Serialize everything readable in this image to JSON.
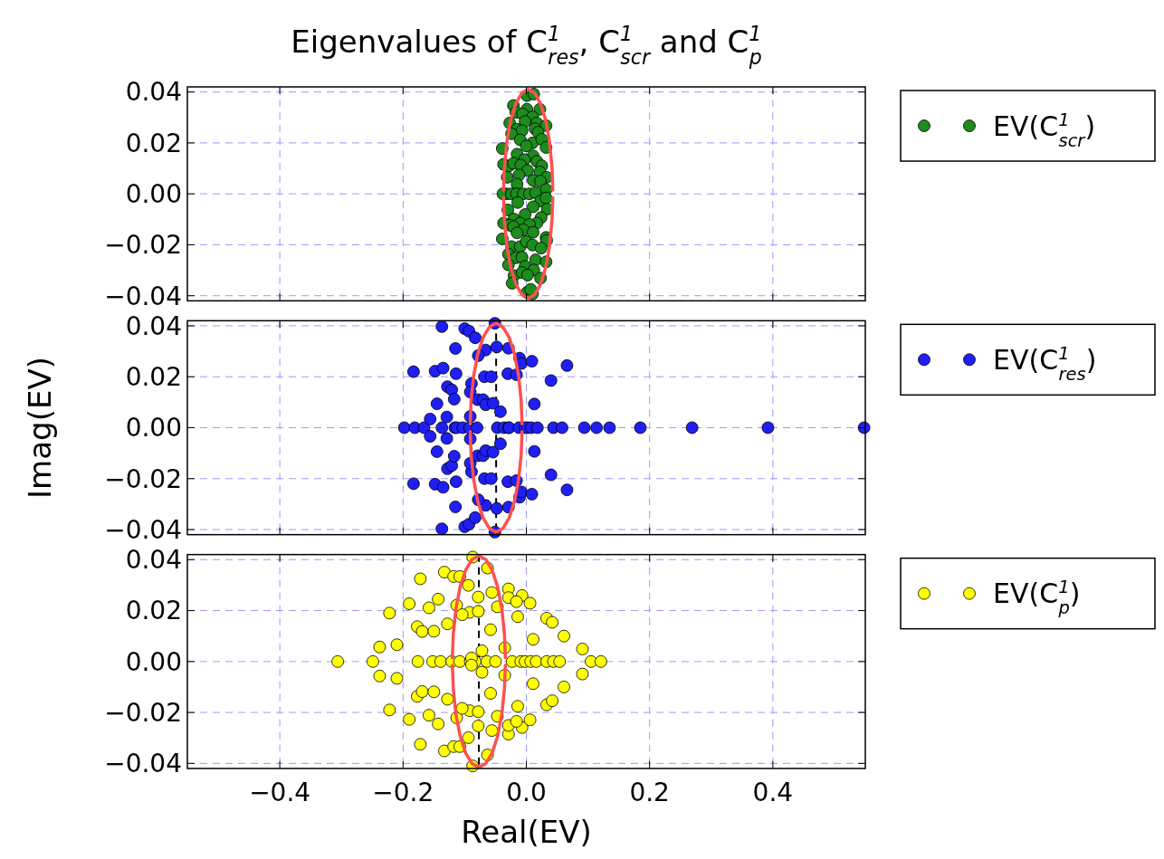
{
  "chart_data": [
    {
      "type": "scatter",
      "title": "Eigenvalues of C$^{1}$$_{res}$, C$^{1}$$_{scr}$ and C$^{1}$$_{p}$",
      "xlim": [
        -0.55,
        0.55
      ],
      "ylim": [
        -0.042,
        0.042
      ],
      "xticks": [
        -0.4,
        -0.2,
        0,
        0.2,
        0.4
      ],
      "yticks": [
        {
          "value": -0.04,
          "label": "−0.04"
        },
        {
          "value": -0.02,
          "label": "−0.02"
        },
        {
          "value": 0,
          "label": "0.00"
        },
        {
          "value": 0.02,
          "label": "0.02"
        },
        {
          "value": 0.04,
          "label": "0.04"
        }
      ],
      "tick_labels": "y",
      "grid": true,
      "legend": "right",
      "marker": "circle",
      "series": [
        {
          "name": "EV(C$^{1}$$_{scr}$)",
          "color": "#1c8c1c",
          "x": [
            0.001,
            0.012,
            -0.021,
            -0.017,
            0.001,
            0.022,
            -0.006,
            0.01,
            -0.027,
            -0.002,
            0.017,
            0.032,
            -0.015,
            -0.007,
            0.014,
            0.019,
            -0.024,
            -0.01,
            0.01,
            0.025,
            -0.039,
            0,
            0.032,
            -0.015,
            0.011,
            -0.003,
            0.017,
            -0.037,
            -0.028,
            -0.021,
            -0.009,
            0.002,
            0.025,
            0.022,
            -0.031,
            -0.012,
            0.011,
            0.033,
            0.023,
            0.032,
            -0.015,
            -0.032,
            -0.038,
            -0.024,
            -0.016,
            -0.005,
            0.005,
            0.015,
            -0.014,
            0.023,
            0.032,
            -0.03,
            0.011,
            0.034,
            -0.002,
            0.024,
            -0.037,
            -0.02,
            -0.01,
            0.017,
            -0.027,
            0.005,
            -0.021,
            -0.005,
            -0.015,
            0.011,
            -0.039,
            0.032,
            -0.024,
            -0.01,
            0,
            0.033,
            0.01,
            0.024,
            -0.029,
            -0.017,
            -0.007,
            0.015,
            0.032,
            -0.002,
            -0.029,
            0.012,
            -0.02,
            -0.007,
            0.002,
            0.023,
            -0.023,
            0.001,
            0.01,
            0.007
          ],
          "values": [
            0.0386,
            0.0392,
            0.0347,
            0.032,
            0.0332,
            0.0332,
            0.0314,
            0.0302,
            0.0278,
            0.0284,
            0.0278,
            0.0268,
            0.0254,
            0.0248,
            0.0256,
            0.0242,
            0.0236,
            0.0212,
            0.02,
            0.0214,
            0.0178,
            0.0188,
            0.0182,
            0.0156,
            0.0149,
            0.0134,
            0.0128,
            0.0116,
            0.011,
            0.012,
            0.0113,
            0.0092,
            0.011,
            0.0086,
            0.0065,
            0.0074,
            0.0053,
            0.0065,
            0.005,
            0.0017,
            0.0038,
            0,
            0,
            0,
            0,
            0,
            0,
            0.0005,
            -0.0034,
            -0.0028,
            -0.0016,
            -0.0063,
            -0.0051,
            -0.006,
            -0.0081,
            -0.0093,
            -0.0115,
            -0.0099,
            -0.0115,
            -0.0115,
            -0.0123,
            -0.012,
            -0.0129,
            -0.0141,
            -0.0153,
            -0.0151,
            -0.0177,
            -0.0171,
            -0.0207,
            -0.0207,
            -0.0187,
            -0.0183,
            -0.0201,
            -0.0213,
            -0.0237,
            -0.0251,
            -0.0249,
            -0.0259,
            -0.0267,
            -0.0285,
            -0.0279,
            -0.0299,
            -0.0321,
            -0.0309,
            -0.0319,
            -0.0331,
            -0.0351,
            -0.0387,
            -0.0393,
            -0.0375
          ]
        },
        {
          "type": "line",
          "marker": "none",
          "color": "#ff5050",
          "x": [
            -0.037,
            -0.0356,
            -0.0316,
            -0.0253,
            -0.017,
            -0.0074,
            0.003,
            0.0134,
            0.023,
            0.0313,
            0.0376,
            0.0416,
            0.043
          ],
          "values": [
            0.0015,
            0.0106,
            0.0205,
            0.029,
            0.0355,
            0.0396,
            0.041,
            0.0396,
            0.0355,
            0.029,
            0.0205,
            0.0106,
            0.0015
          ]
        },
        {
          "type": "line",
          "marker": "none",
          "color": "#ff5050",
          "x": [
            -0.037,
            -0.0356,
            -0.0316,
            -0.0253,
            -0.017,
            -0.0074,
            0.003,
            0.0134,
            0.023,
            0.0313,
            0.0376,
            0.0416,
            0.043
          ],
          "values": [
            -0.0015,
            -0.0106,
            -0.0205,
            -0.029,
            -0.0355,
            -0.0396,
            -0.041,
            -0.0396,
            -0.0355,
            -0.029,
            -0.0205,
            -0.0106,
            -0.0015
          ]
        }
      ]
    },
    {
      "type": "scatter",
      "ylabel": "Imag(EV)",
      "xlim": [
        -0.55,
        0.55
      ],
      "ylim": [
        -0.042,
        0.042
      ],
      "xticks": [
        -0.4,
        -0.2,
        0,
        0.2,
        0.4
      ],
      "yticks": [
        {
          "value": -0.04,
          "label": "−0.04"
        },
        {
          "value": -0.02,
          "label": "−0.02"
        },
        {
          "value": 0,
          "label": "0.00"
        },
        {
          "value": 0.02,
          "label": "0.02"
        },
        {
          "value": 0.04,
          "label": "0.04"
        }
      ],
      "tick_labels": "y",
      "grid": true,
      "legend": "right",
      "marker": "circle",
      "ref_lines": [
        {
          "axis": "x",
          "value": -0.049,
          "color": "#000000",
          "line_style": "dashed"
        }
      ],
      "series": [
        {
          "name": "EV(C$^{1}$$_{res}$)",
          "color": "#1f1ff5",
          "x": [
            -0.198,
            -0.181,
            -0.166,
            -0.137,
            -0.116,
            -0.113,
            -0.103,
            -0.092,
            -0.08,
            -0.047,
            -0.036,
            -0.029,
            -0.028,
            -0.012,
            -0.002,
            0.002,
            0.008,
            0.018,
            0.044,
            0.058,
            0.094,
            0.114,
            0.135,
            0.185,
            0.269,
            0.392,
            0.548,
            -0.137,
            -0.1,
            -0.093,
            -0.083,
            -0.051,
            -0.115,
            -0.066,
            -0.048,
            -0.029,
            -0.078,
            -0.011,
            -0.008,
            0.009,
            0.066,
            -0.183,
            -0.148,
            -0.135,
            -0.114,
            -0.068,
            -0.057,
            -0.03,
            -0.016,
            0.04,
            -0.089,
            -0.128,
            -0.121,
            -0.091,
            -0.117,
            -0.145,
            -0.079,
            -0.07,
            -0.066,
            -0.054,
            -0.042,
            0.013,
            -0.156,
            -0.129,
            -0.091,
            -0.137,
            -0.1,
            -0.093,
            -0.083,
            -0.051,
            -0.115,
            -0.066,
            -0.048,
            -0.029,
            -0.078,
            -0.011,
            -0.008,
            0.009,
            0.066,
            -0.183,
            -0.148,
            -0.135,
            -0.114,
            -0.068,
            -0.057,
            -0.03,
            -0.016,
            0.04,
            -0.089,
            -0.128,
            -0.121,
            -0.091,
            -0.117,
            -0.145,
            -0.079,
            -0.07,
            -0.066,
            -0.054,
            -0.042,
            0.013,
            -0.156,
            -0.129,
            -0.091
          ],
          "values": [
            0,
            0,
            0,
            0,
            0,
            0,
            0,
            0,
            0,
            0,
            0,
            0,
            0,
            0,
            0,
            0,
            0,
            0,
            0,
            0,
            0,
            0,
            0,
            0,
            0,
            0,
            0,
            0.0397,
            0.0389,
            0.0379,
            0.0353,
            0.041,
            0.0311,
            0.0305,
            0.0317,
            0.0312,
            0.0283,
            0.0273,
            0.0252,
            0.0261,
            0.0244,
            0.022,
            0.0222,
            0.0234,
            0.0212,
            0.02,
            0.02,
            0.0212,
            0.0208,
            0.0185,
            0.0173,
            0.0161,
            0.0149,
            0.014,
            0.0112,
            0.0094,
            0.011,
            0.011,
            0.009,
            0.0096,
            0.0063,
            0.0093,
            0.0034,
            0.0042,
            0.0044,
            -0.0397,
            -0.0389,
            -0.0379,
            -0.0353,
            -0.041,
            -0.0311,
            -0.0305,
            -0.0317,
            -0.0312,
            -0.0283,
            -0.0273,
            -0.0252,
            -0.0261,
            -0.0244,
            -0.022,
            -0.0222,
            -0.0234,
            -0.0212,
            -0.02,
            -0.02,
            -0.0212,
            -0.0208,
            -0.0185,
            -0.0173,
            -0.0161,
            -0.0149,
            -0.014,
            -0.0112,
            -0.0094,
            -0.011,
            -0.011,
            -0.009,
            -0.0096,
            -0.0063,
            -0.0093,
            -0.0034,
            -0.0042,
            -0.0044
          ]
        },
        {
          "type": "line",
          "marker": "none",
          "color": "#ff5050",
          "x": [
            -0.091,
            -0.0896,
            -0.0854,
            -0.0787,
            -0.07,
            -0.0599,
            -0.049,
            -0.0381,
            -0.028,
            -0.0193,
            -0.0126,
            -0.0084,
            -0.007
          ],
          "values": [
            0.0015,
            0.0106,
            0.0205,
            0.029,
            0.0355,
            0.0396,
            0.041,
            0.0396,
            0.0355,
            0.029,
            0.0205,
            0.0106,
            0.0015
          ]
        },
        {
          "type": "line",
          "marker": "none",
          "color": "#ff5050",
          "x": [
            -0.091,
            -0.0896,
            -0.0854,
            -0.0787,
            -0.07,
            -0.0599,
            -0.049,
            -0.0381,
            -0.028,
            -0.0193,
            -0.0126,
            -0.0084,
            -0.007
          ],
          "values": [
            -0.0015,
            -0.0106,
            -0.0205,
            -0.029,
            -0.0355,
            -0.0396,
            -0.041,
            -0.0396,
            -0.0355,
            -0.029,
            -0.0205,
            -0.0106,
            -0.0015
          ]
        }
      ]
    },
    {
      "type": "scatter",
      "xlabel": "Real(EV)",
      "xlim": [
        -0.55,
        0.55
      ],
      "ylim": [
        -0.042,
        0.042
      ],
      "xticks": [
        {
          "value": -0.4,
          "label": "−0.4"
        },
        {
          "value": -0.2,
          "label": "−0.2"
        },
        {
          "value": 0,
          "label": "0.0"
        },
        {
          "value": 0.2,
          "label": "0.2"
        },
        {
          "value": 0.4,
          "label": "0.4"
        }
      ],
      "yticks": [
        {
          "value": -0.04,
          "label": "−0.04"
        },
        {
          "value": -0.02,
          "label": "−0.02"
        },
        {
          "value": 0,
          "label": "0.00"
        },
        {
          "value": 0.02,
          "label": "0.02"
        },
        {
          "value": 0.04,
          "label": "0.04"
        }
      ],
      "grid": true,
      "legend": "right",
      "marker": "circle",
      "ref_lines": [
        {
          "axis": "x",
          "value": -0.077,
          "color": "#000000",
          "line_style": "dashed"
        }
      ],
      "series": [
        {
          "name": "EV(C$^{1}$$_{p}$)",
          "color": "#ffff00",
          "x": [
            -0.306,
            -0.249,
            -0.176,
            -0.152,
            -0.139,
            -0.121,
            -0.108,
            -0.091,
            -0.083,
            -0.064,
            -0.05,
            -0.023,
            -0.009,
            -0.002,
            0.007,
            0.016,
            0.033,
            0.044,
            0.054,
            0.105,
            0.121,
            -0.087,
            -0.063,
            -0.133,
            -0.118,
            -0.108,
            -0.172,
            -0.094,
            -0.029,
            -0.056,
            -0.078,
            -0.029,
            -0.007,
            -0.016,
            0.006,
            -0.143,
            -0.19,
            -0.158,
            -0.113,
            -0.047,
            -0.092,
            -0.104,
            -0.078,
            -0.222,
            -0.014,
            0.033,
            0.042,
            -0.128,
            -0.177,
            -0.169,
            -0.15,
            -0.058,
            0.061,
            0.011,
            -0.21,
            -0.238,
            -0.035,
            0.091,
            -0.072,
            -0.089,
            -0.087,
            -0.063,
            -0.133,
            -0.118,
            -0.108,
            -0.172,
            -0.094,
            -0.029,
            -0.056,
            -0.078,
            -0.029,
            -0.007,
            -0.016,
            0.006,
            -0.143,
            -0.19,
            -0.158,
            -0.113,
            -0.047,
            -0.092,
            -0.104,
            -0.078,
            -0.222,
            -0.014,
            0.033,
            0.042,
            -0.128,
            -0.177,
            -0.169,
            -0.15,
            -0.058,
            0.061,
            0.011,
            -0.21,
            -0.238,
            -0.035,
            0.091,
            -0.072,
            -0.089
          ],
          "values": [
            0,
            0,
            0,
            0,
            0,
            0,
            0,
            0,
            0,
            0,
            0,
            0,
            0,
            0,
            0,
            0,
            0,
            0,
            0,
            0,
            0,
            0.041,
            0.0367,
            0.0351,
            0.0334,
            0.0334,
            0.0325,
            0.0299,
            0.0285,
            0.0271,
            0.0253,
            0.0251,
            0.0259,
            0.0235,
            0.0229,
            0.0245,
            0.0227,
            0.0211,
            0.0221,
            0.0215,
            0.0193,
            0.0184,
            0.0197,
            0.019,
            0.0176,
            0.017,
            0.0154,
            0.0148,
            0.0137,
            0.0118,
            0.0119,
            0.0125,
            0.01,
            0.0087,
            0.0066,
            0.0057,
            0.0054,
            0.0049,
            0.0042,
            0.0014,
            -0.041,
            -0.0367,
            -0.0351,
            -0.0334,
            -0.0334,
            -0.0325,
            -0.0299,
            -0.0285,
            -0.0271,
            -0.0253,
            -0.0251,
            -0.0259,
            -0.0235,
            -0.0229,
            -0.0245,
            -0.0227,
            -0.0211,
            -0.0221,
            -0.0215,
            -0.0193,
            -0.0184,
            -0.0197,
            -0.019,
            -0.0176,
            -0.017,
            -0.0154,
            -0.0148,
            -0.0137,
            -0.0118,
            -0.0119,
            -0.0125,
            -0.01,
            -0.0087,
            -0.0066,
            -0.0057,
            -0.0054,
            -0.0049,
            -0.0042,
            -0.0014
          ]
        },
        {
          "type": "line",
          "marker": "none",
          "color": "#ff5050",
          "x": [
            -0.12,
            -0.1185,
            -0.1142,
            -0.1074,
            -0.0985,
            -0.0881,
            -0.077,
            -0.0659,
            -0.0555,
            -0.0466,
            -0.0398,
            -0.0355,
            -0.034
          ],
          "values": [
            0.0015,
            0.0107,
            0.0208,
            0.0293,
            0.0359,
            0.0401,
            0.0415,
            0.0401,
            0.0359,
            0.0293,
            0.0208,
            0.0107,
            0.0015
          ]
        },
        {
          "type": "line",
          "marker": "none",
          "color": "#ff5050",
          "x": [
            -0.12,
            -0.1185,
            -0.1142,
            -0.1074,
            -0.0985,
            -0.0881,
            -0.077,
            -0.0659,
            -0.0555,
            -0.0466,
            -0.0398,
            -0.0355,
            -0.034
          ],
          "values": [
            -0.0015,
            -0.0107,
            -0.0208,
            -0.0293,
            -0.0359,
            -0.0401,
            -0.0415,
            -0.0401,
            -0.0359,
            -0.0293,
            -0.0208,
            -0.0107,
            -0.0015
          ]
        }
      ]
    }
  ]
}
